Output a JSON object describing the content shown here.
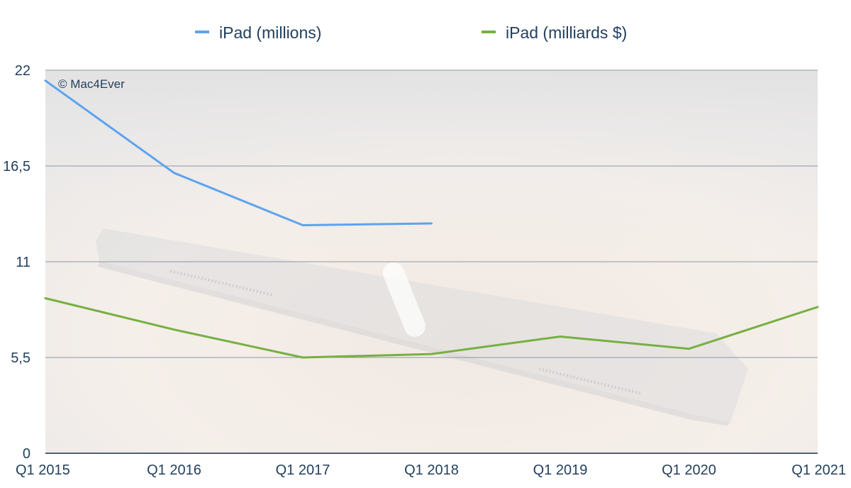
{
  "watermark": "© Mac4Ever",
  "chart_data": {
    "type": "line",
    "categories": [
      "Q1 2015",
      "Q1 2016",
      "Q1 2017",
      "Q1 2018",
      "Q1 2019",
      "Q1 2020",
      "Q1 2021"
    ],
    "y_ticks": [
      "0",
      "5,5",
      "11",
      "16,5",
      "22"
    ],
    "ylim": [
      0,
      22
    ],
    "grid": true,
    "legend_position": "top",
    "series": [
      {
        "name": "iPad (millions)",
        "color": "#5ea3ee",
        "values": [
          21.4,
          16.1,
          13.1,
          13.2,
          null,
          null,
          null
        ]
      },
      {
        "name": "iPad (milliards $)",
        "color": "#76b041",
        "values": [
          8.9,
          7.1,
          5.5,
          5.7,
          6.7,
          6.0,
          8.4
        ]
      }
    ]
  }
}
